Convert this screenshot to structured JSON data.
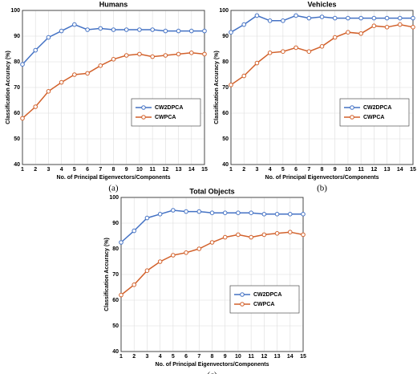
{
  "chart_data": [
    {
      "type": "line",
      "title": "Humans",
      "caption": "(a)",
      "xlabel": "No. of Principal Eigenvectors/Components",
      "ylabel": "Classification Accuracy (%)",
      "x": [
        1,
        2,
        3,
        4,
        5,
        6,
        7,
        8,
        9,
        10,
        11,
        12,
        13,
        14,
        15
      ],
      "series": [
        {
          "name": "CW2DPCA",
          "color": "#4472c4",
          "values": [
            79,
            84.5,
            89.5,
            92,
            94.5,
            92.5,
            93,
            92.5,
            92.5,
            92.5,
            92.5,
            92,
            92,
            92,
            92
          ]
        },
        {
          "name": "CWPCA",
          "color": "#d2612b",
          "values": [
            58,
            62.5,
            68.5,
            72,
            75,
            75.5,
            78.5,
            81,
            82.5,
            83,
            82,
            82.5,
            83,
            83.5,
            83
          ]
        }
      ],
      "xlim": [
        1,
        15
      ],
      "xticks": [
        1,
        2,
        3,
        4,
        5,
        6,
        7,
        8,
        9,
        10,
        11,
        12,
        13,
        14,
        15
      ],
      "ylim": [
        40,
        100
      ],
      "yticks": [
        40,
        50,
        60,
        70,
        80,
        90,
        100
      ],
      "grid": true,
      "legend": "lower right"
    },
    {
      "type": "line",
      "title": "Vehicles",
      "caption": "(b)",
      "xlabel": "No. of Principal Eigenvectors/Components",
      "ylabel": "Classification Accuracy (%)",
      "x": [
        1,
        2,
        3,
        4,
        5,
        6,
        7,
        8,
        9,
        10,
        11,
        12,
        13,
        14,
        15
      ],
      "series": [
        {
          "name": "CW2DPCA",
          "color": "#4472c4",
          "values": [
            91.5,
            94.5,
            98,
            96,
            96,
            98,
            97,
            97.5,
            97,
            97,
            97,
            97,
            97,
            97,
            97
          ]
        },
        {
          "name": "CWPCA",
          "color": "#d2612b",
          "values": [
            71,
            74.5,
            79.5,
            83.5,
            84,
            85.5,
            84,
            86,
            89.5,
            91.5,
            91,
            94,
            93.5,
            94.5,
            93.5
          ]
        }
      ],
      "xlim": [
        1,
        15
      ],
      "xticks": [
        1,
        2,
        3,
        4,
        5,
        6,
        7,
        8,
        9,
        10,
        11,
        12,
        13,
        14,
        15
      ],
      "ylim": [
        40,
        100
      ],
      "yticks": [
        40,
        50,
        60,
        70,
        80,
        90,
        100
      ],
      "grid": true,
      "legend": "lower right"
    },
    {
      "type": "line",
      "title": "Total Objects",
      "caption": "(c)",
      "xlabel": "No. of Principal Eigenvectors/Components",
      "ylabel": "Classification Accuracy (%)",
      "x": [
        1,
        2,
        3,
        4,
        5,
        6,
        7,
        8,
        9,
        10,
        11,
        12,
        13,
        14,
        15
      ],
      "series": [
        {
          "name": "CW2DPCA",
          "color": "#4472c4",
          "values": [
            82.5,
            87,
            92,
            93.5,
            95,
            94.5,
            94.5,
            94,
            94,
            94,
            94,
            93.5,
            93.5,
            93.5,
            93.5
          ]
        },
        {
          "name": "CWPCA",
          "color": "#d2612b",
          "values": [
            62,
            66,
            71.5,
            75,
            77.5,
            78.5,
            80,
            82.5,
            84.5,
            85.5,
            84.5,
            85.5,
            86,
            86.5,
            85.5
          ]
        }
      ],
      "xlim": [
        1,
        15
      ],
      "xticks": [
        1,
        2,
        3,
        4,
        5,
        6,
        7,
        8,
        9,
        10,
        11,
        12,
        13,
        14,
        15
      ],
      "ylim": [
        40,
        100
      ],
      "yticks": [
        40,
        50,
        60,
        70,
        80,
        90,
        100
      ],
      "grid": true,
      "legend": "lower right"
    }
  ]
}
